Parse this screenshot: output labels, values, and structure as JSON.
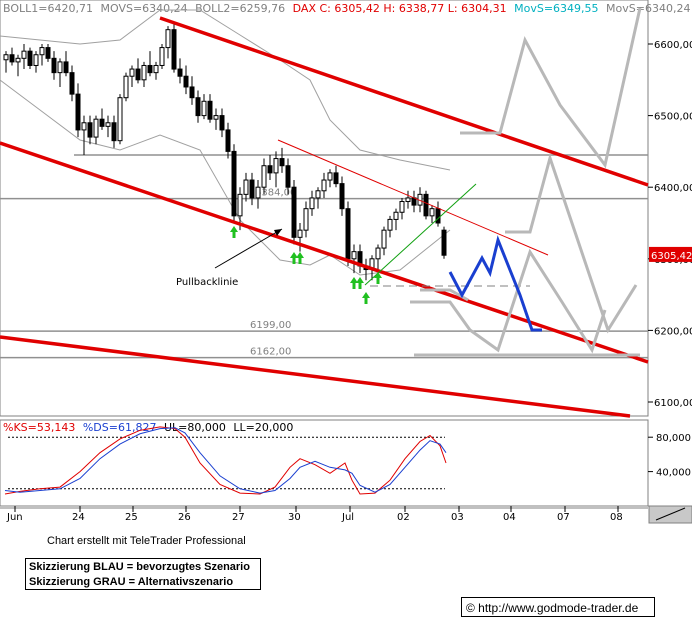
{
  "header": {
    "boll1": "BOLL1=6420,71",
    "movs1": "MOVS=6340,24",
    "boll2": "BOLL2=6259,76",
    "dax": "DAX C: 6305,42 H: 6338,77 L: 6304,31",
    "movs_blue": "MovS=6349,55",
    "movs2": "MovS=6340,24"
  },
  "chart_data": [
    {
      "type": "candlestick",
      "title": "",
      "y_ticks": [
        "6600,00",
        "6500,00",
        "6400,00",
        "6300,00",
        "6200,00",
        "6100,00"
      ],
      "ylim": [
        6088,
        6640
      ],
      "x_ticks": [
        "Jun",
        "24",
        "25",
        "26",
        "27",
        "30",
        "Jul",
        "02",
        "03",
        "04",
        "07",
        "08"
      ],
      "last_value_label": "6305,42",
      "levels": [
        {
          "label": "6384,00",
          "value": 6384
        },
        {
          "label": "6199,00",
          "value": 6199
        },
        {
          "label": "6162,00",
          "value": 6162
        }
      ],
      "annotations": [
        "Pullbacklinie"
      ],
      "colors": {
        "channel": "#e00000",
        "blue_scenario": "#1a3fd0",
        "grey_scenario": "#b8b8b8",
        "arrows": "#10c000"
      }
    },
    {
      "type": "line",
      "title": "",
      "header": {
        "ks": "%KS=53,143",
        "ds": "%DS=61,827",
        "ul": "UL=80,000",
        "ll": "LL=20,000"
      },
      "y_ticks": [
        "80,000",
        "40,000"
      ],
      "ylim": [
        0,
        100
      ],
      "upper_line": 80,
      "lower_line": 20
    }
  ],
  "footer": {
    "credit": "Chart erstellt mit TeleTrader Professional",
    "note1": "Skizzierung BLAU = bevorzugtes Szenario",
    "note2": "Skizzierung GRAU = Alternativszenario",
    "url": "© http://www.godmode-trader.de"
  }
}
